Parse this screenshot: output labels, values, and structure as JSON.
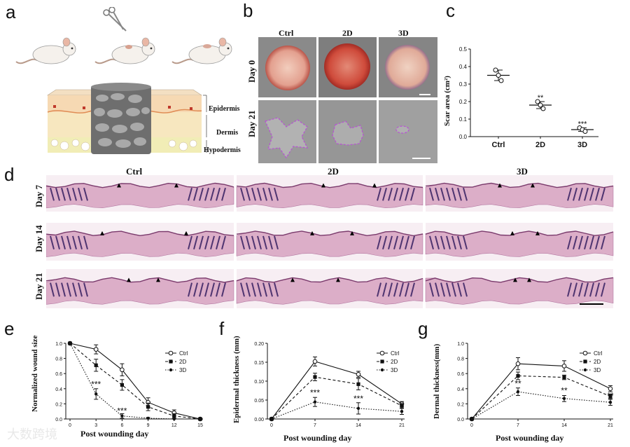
{
  "panels": {
    "a": "a",
    "b": "b",
    "c": "c",
    "d": "d",
    "e": "e",
    "f": "f",
    "g": "g"
  },
  "panel_a": {
    "layers": [
      "Epidermis",
      "Dermis",
      "Hypodermis"
    ]
  },
  "panel_b": {
    "columns": [
      "Ctrl",
      "2D",
      "3D"
    ],
    "rows": [
      "Day 0",
      "Day 21"
    ]
  },
  "panel_d": {
    "columns": [
      "Ctrl",
      "2D",
      "3D"
    ],
    "rows": [
      "Day 7",
      "Day 14",
      "Day 21"
    ]
  },
  "watermark": "大数跨境",
  "colors": {
    "photo_gray": "#8c8c8c",
    "wound_red": "#c0392b",
    "he_pink": "#d9a7c0",
    "purple_outline": "#b84fd6"
  },
  "chart_data": [
    {
      "id": "c",
      "type": "scatter",
      "ylabel": "Scar area (cm²)",
      "categories": [
        "Ctrl",
        "2D",
        "3D"
      ],
      "ylim": [
        0.0,
        0.5
      ],
      "yticks": [
        0.0,
        0.1,
        0.2,
        0.3,
        0.4,
        0.5
      ],
      "ytick_labels": [
        "0.0",
        "0.1",
        "0.2",
        "0.3",
        "0.4",
        "0.5"
      ],
      "points": [
        [
          0.38,
          0.35,
          0.32
        ],
        [
          0.2,
          0.18,
          0.16
        ],
        [
          0.05,
          0.04,
          0.03
        ]
      ],
      "mean": [
        0.35,
        0.18,
        0.04
      ],
      "sd": [
        0.03,
        0.02,
        0.01
      ],
      "annotations": [
        "",
        "**",
        "***"
      ]
    },
    {
      "id": "e",
      "type": "line",
      "ylabel": "Normalized wound size",
      "xlabel": "Post wounding day",
      "x": [
        0,
        3,
        6,
        9,
        12,
        15
      ],
      "xtick_labels": [
        "0",
        "3",
        "6",
        "9",
        "12",
        "15"
      ],
      "ylim": [
        0.0,
        1.0
      ],
      "yticks": [
        0.0,
        0.2,
        0.4,
        0.6,
        0.8,
        1.0
      ],
      "ytick_labels": [
        "0.0",
        "0.2",
        "0.4",
        "0.6",
        "0.8",
        "1.0"
      ],
      "series": [
        {
          "name": "Ctrl",
          "values": [
            1.0,
            0.92,
            0.65,
            0.22,
            0.08,
            0.0
          ],
          "err": [
            0,
            0.06,
            0.08,
            0.06,
            0.04,
            0
          ],
          "style": "solid",
          "marker": "open-circle"
        },
        {
          "name": "2D",
          "values": [
            1.0,
            0.71,
            0.45,
            0.16,
            0.04,
            0.0
          ],
          "err": [
            0,
            0.08,
            0.07,
            0.05,
            0.03,
            0
          ],
          "style": "dashed",
          "marker": "square"
        },
        {
          "name": "3D",
          "values": [
            1.0,
            0.33,
            0.04,
            0.01,
            0.0,
            0.0
          ],
          "err": [
            0,
            0.07,
            0.03,
            0.01,
            0,
            0
          ],
          "style": "dotted",
          "marker": "dot"
        }
      ],
      "annotations": [
        {
          "x": 3,
          "y": 0.42,
          "text": "***"
        },
        {
          "x": 6,
          "y": 0.07,
          "text": "***"
        }
      ]
    },
    {
      "id": "f",
      "type": "line",
      "ylabel": "Epidermal thickness (mm)",
      "xlabel": "Post wounding day",
      "x": [
        0,
        7,
        14,
        21
      ],
      "xtick_labels": [
        "0",
        "7",
        "14",
        "21"
      ],
      "ylim": [
        0.0,
        0.2
      ],
      "yticks": [
        0.0,
        0.05,
        0.1,
        0.15,
        0.2
      ],
      "ytick_labels": [
        "0.00",
        "0.05",
        "0.10",
        "0.15",
        "0.20"
      ],
      "series": [
        {
          "name": "Ctrl",
          "values": [
            0.0,
            0.152,
            0.118,
            0.04
          ],
          "err": [
            0,
            0.012,
            0.008,
            0.006
          ],
          "style": "solid",
          "marker": "open-circle"
        },
        {
          "name": "2D",
          "values": [
            0.0,
            0.111,
            0.092,
            0.035
          ],
          "err": [
            0,
            0.01,
            0.015,
            0.006
          ],
          "style": "dashed",
          "marker": "square"
        },
        {
          "name": "3D",
          "values": [
            0.0,
            0.045,
            0.028,
            0.02
          ],
          "err": [
            0,
            0.012,
            0.015,
            0.008
          ],
          "style": "dotted",
          "marker": "dot"
        }
      ],
      "annotations": [
        {
          "x": 7,
          "y": 0.062,
          "text": "***"
        },
        {
          "x": 14,
          "y": 0.046,
          "text": "***"
        }
      ]
    },
    {
      "id": "g",
      "type": "line",
      "ylabel": "Dermal thickness(mm)",
      "xlabel": "Post wounding day",
      "x": [
        0,
        7,
        14,
        21
      ],
      "xtick_labels": [
        "0",
        "7",
        "14",
        "21"
      ],
      "ylim": [
        0.0,
        1.0
      ],
      "yticks": [
        0.0,
        0.2,
        0.4,
        0.6,
        0.8,
        1.0
      ],
      "ytick_labels": [
        "0.0",
        "0.2",
        "0.4",
        "0.6",
        "0.8",
        "1.0"
      ],
      "series": [
        {
          "name": "Ctrl",
          "values": [
            0.0,
            0.73,
            0.7,
            0.4
          ],
          "err": [
            0,
            0.08,
            0.07,
            0.04
          ],
          "style": "solid",
          "marker": "open-circle"
        },
        {
          "name": "2D",
          "values": [
            0.0,
            0.57,
            0.55,
            0.3
          ],
          "err": [
            0,
            0.05,
            0.03,
            0.03
          ],
          "style": "dashed",
          "marker": "square"
        },
        {
          "name": "3D",
          "values": [
            0.0,
            0.36,
            0.27,
            0.22
          ],
          "err": [
            0,
            0.05,
            0.04,
            0.04
          ],
          "style": "dotted",
          "marker": "dot"
        }
      ],
      "annotations": [
        {
          "x": 7,
          "y": 0.43,
          "text": "**"
        },
        {
          "x": 14,
          "y": 0.34,
          "text": "**"
        },
        {
          "x": 21,
          "y": 0.27,
          "text": "**"
        }
      ]
    }
  ]
}
